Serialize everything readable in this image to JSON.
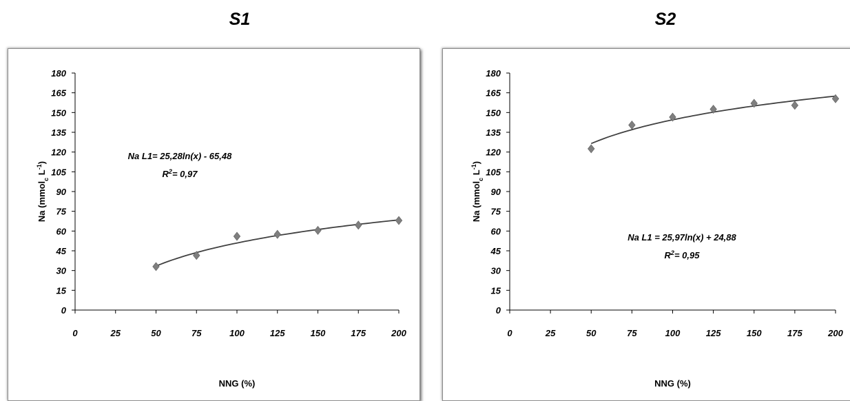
{
  "colors": {
    "marker": "#7f7f7f",
    "trendline": "#404040",
    "frame_border": "#8c8c8c"
  },
  "chart_data": [
    {
      "type": "scatter",
      "title": "S1",
      "xlabel": "NNG (%)",
      "ylabel_main": "Na (mmol",
      "ylabel_sub": "c",
      "ylabel_unit": " L",
      "ylabel_sup": "-1",
      "ylabel_close": ")",
      "xlim": [
        0,
        200
      ],
      "ylim": [
        0,
        180
      ],
      "xticks": [
        0,
        25,
        50,
        75,
        100,
        125,
        150,
        175,
        200
      ],
      "yticks": [
        0,
        15,
        30,
        45,
        60,
        75,
        90,
        105,
        120,
        135,
        150,
        165,
        180
      ],
      "x": [
        50,
        75,
        100,
        125,
        150,
        175,
        200
      ],
      "y": [
        33,
        41.5,
        56,
        57.5,
        60.5,
        64.5,
        68
      ],
      "marker": "diamond",
      "trendline": {
        "type": "logarithmic",
        "a": 25.28,
        "b": -65.48
      },
      "equation": "Na L1= 25,28ln(x) - 65,48",
      "r2_prefix": "R",
      "r2_sup": "2",
      "r2_value": "= 0,97",
      "grid": false,
      "legend": "none"
    },
    {
      "type": "scatter",
      "title": "S2",
      "xlabel": "NNG (%)",
      "ylabel_main": "Na (mmol",
      "ylabel_sub": "c",
      "ylabel_unit": " L",
      "ylabel_sup": "-1",
      "ylabel_close": ")",
      "xlim": [
        0,
        200
      ],
      "ylim": [
        0,
        180
      ],
      "xticks": [
        0,
        25,
        50,
        75,
        100,
        125,
        150,
        175,
        200
      ],
      "yticks": [
        0,
        15,
        30,
        45,
        60,
        75,
        90,
        105,
        120,
        135,
        150,
        165,
        180
      ],
      "x": [
        50,
        75,
        100,
        125,
        150,
        175,
        200
      ],
      "y": [
        122.5,
        140.5,
        146.5,
        152.5,
        157,
        155.5,
        160.5
      ],
      "marker": "diamond",
      "trendline": {
        "type": "logarithmic",
        "a": 25.97,
        "b": 24.88
      },
      "equation": "Na L1 = 25,97ln(x) + 24,88",
      "r2_prefix": "R",
      "r2_sup": "2",
      "r2_value": "= 0,95",
      "grid": false,
      "legend": "none"
    }
  ]
}
